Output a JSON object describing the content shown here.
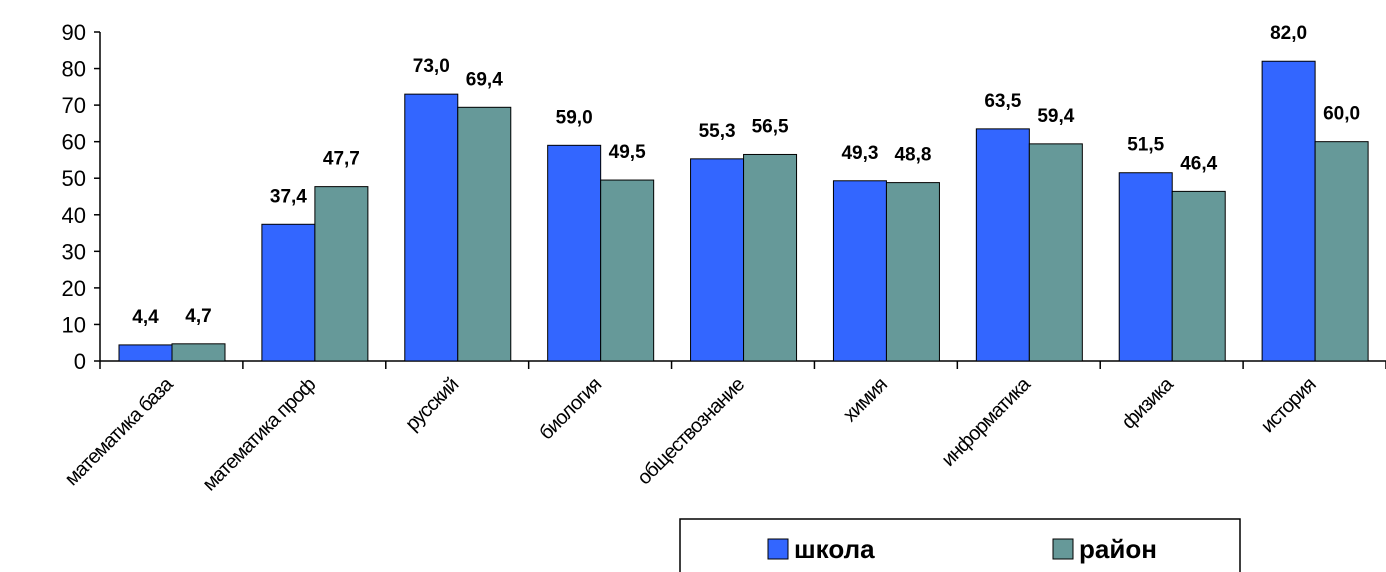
{
  "chart_data": {
    "type": "bar",
    "categories": [
      "математика база",
      "математика проф",
      "русский",
      "биология",
      "обществознание",
      "химия",
      "информатика",
      "физика",
      "история"
    ],
    "series": [
      {
        "name": "школа",
        "color": "#3366ff",
        "values": [
          4.4,
          37.4,
          73.0,
          59.0,
          55.3,
          49.3,
          63.5,
          51.5,
          82.0
        ],
        "labels": [
          "4,4",
          "37,4",
          "73,0",
          "59,0",
          "55,3",
          "49,3",
          "63,5",
          "51,5",
          "82,0"
        ]
      },
      {
        "name": "район",
        "color": "#669999",
        "values": [
          4.7,
          47.7,
          69.4,
          49.5,
          56.5,
          48.8,
          59.4,
          46.4,
          60.0
        ],
        "labels": [
          "4,7",
          "47,7",
          "69,4",
          "49,5",
          "56,5",
          "48,8",
          "59,4",
          "46,4",
          "60,0"
        ]
      }
    ],
    "ylim": [
      0,
      90
    ],
    "yticks": [
      0,
      10,
      20,
      30,
      40,
      50,
      60,
      70,
      80,
      90
    ],
    "ytick_labels": [
      "0",
      "10",
      "20",
      "30",
      "40",
      "50",
      "60",
      "70",
      "80",
      "90"
    ],
    "title": "",
    "xlabel": "",
    "ylabel": "",
    "grid": false,
    "legend_position": "bottom"
  }
}
